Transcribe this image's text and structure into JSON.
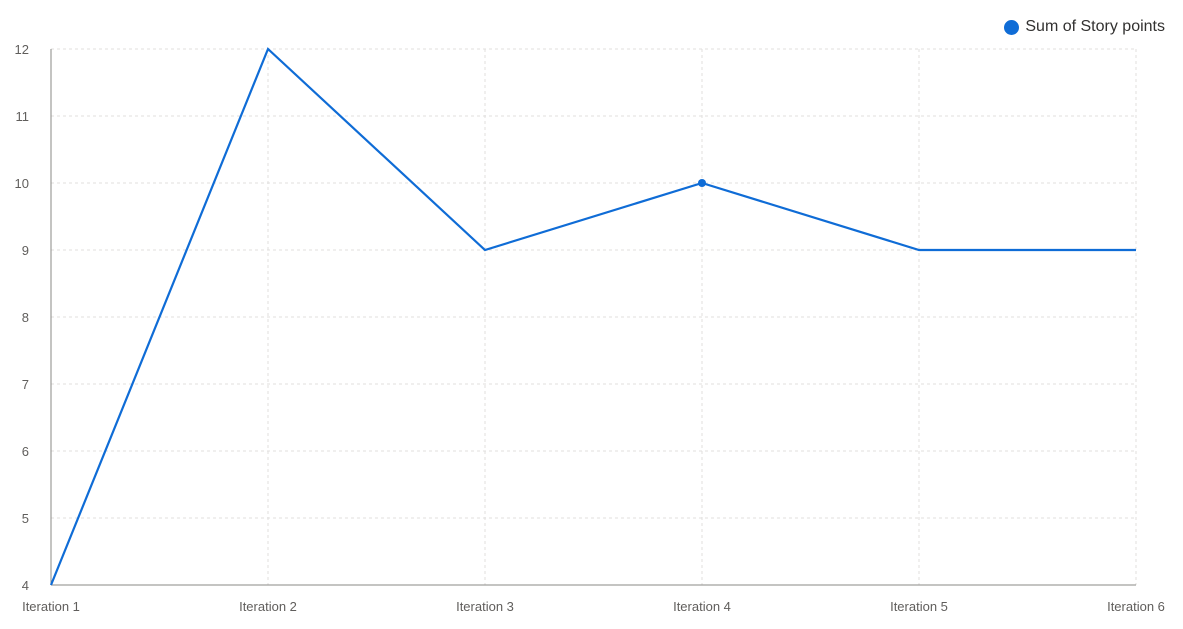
{
  "chart_data": {
    "type": "line",
    "categories": [
      "Iteration 1",
      "Iteration 2",
      "Iteration 3",
      "Iteration 4",
      "Iteration 5",
      "Iteration 6"
    ],
    "series": [
      {
        "name": "Sum of Story points",
        "values": [
          4,
          12,
          9,
          10,
          9,
          9
        ],
        "color": "#0f6cd6"
      }
    ],
    "highlighted_point_index": 3,
    "yticks": [
      4,
      5,
      6,
      7,
      8,
      9,
      10,
      11,
      12
    ],
    "ylim": [
      4,
      12
    ],
    "grid": true,
    "legend_position": "top-right",
    "title": "",
    "xlabel": "",
    "ylabel": ""
  }
}
